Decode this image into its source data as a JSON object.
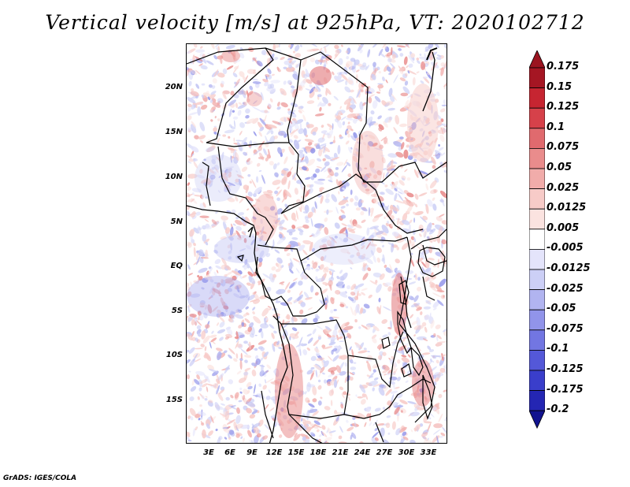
{
  "title": "Vertical velocity [m/s] at 925hPa, VT: 2020102712",
  "credit": "GrADS: IGES/COLA",
  "lat_labels": [
    "20N",
    "15N",
    "10N",
    "5N",
    "EQ",
    "5S",
    "10S",
    "15S"
  ],
  "lon_labels": [
    "3E",
    "6E",
    "9E",
    "12E",
    "15E",
    "18E",
    "21E",
    "24E",
    "27E",
    "30E",
    "33E"
  ],
  "colorbar": {
    "labels": [
      "0.175",
      "0.15",
      "0.125",
      "0.1",
      "0.075",
      "0.05",
      "0.025",
      "0.0125",
      "0.005",
      "-0.005",
      "-0.0125",
      "-0.025",
      "-0.05",
      "-0.075",
      "-0.1",
      "-0.125",
      "-0.175",
      "-0.2"
    ],
    "colors": [
      "#a51623",
      "#c62531",
      "#d6414a",
      "#e06a6e",
      "#e98c8c",
      "#f1acaa",
      "#f7cbc8",
      "#fbe3e0",
      "#ffffff",
      "#e4e4fb",
      "#cccff6",
      "#b1b4f0",
      "#9194ea",
      "#7276e2",
      "#5458d8",
      "#3a3ecb",
      "#2426b3",
      "#14169a"
    ],
    "top_color": "#9b1420",
    "bottom_color": "#12138f"
  }
}
